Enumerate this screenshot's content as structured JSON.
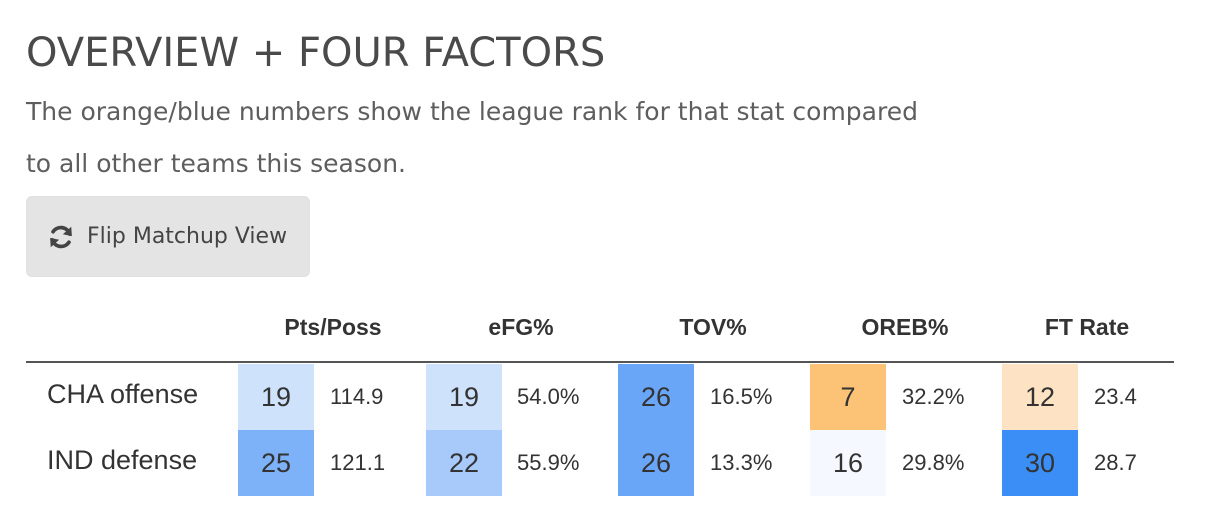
{
  "title": "OVERVIEW + FOUR FACTORS",
  "subtitle": "The orange/blue numbers show the league rank for that stat compared to all other teams this season.",
  "button": {
    "label": "Flip Matchup View",
    "icon": "refresh-icon"
  },
  "columns": [
    "Pts/Poss",
    "eFG%",
    "TOV%",
    "OREB%",
    "FT Rate"
  ],
  "rows": [
    {
      "label": "CHA offense",
      "cells": [
        {
          "rank": "19",
          "value": "114.9",
          "color": "#cfe2fb"
        },
        {
          "rank": "19",
          "value": "54.0%",
          "color": "#cfe2fb"
        },
        {
          "rank": "26",
          "value": "16.5%",
          "color": "#6aa6f7"
        },
        {
          "rank": "7",
          "value": "32.2%",
          "color": "#fcc276"
        },
        {
          "rank": "12",
          "value": "23.4",
          "color": "#fde3c3"
        }
      ]
    },
    {
      "label": "IND defense",
      "cells": [
        {
          "rank": "25",
          "value": "121.1",
          "color": "#7db1f8"
        },
        {
          "rank": "22",
          "value": "55.9%",
          "color": "#a8cafa"
        },
        {
          "rank": "26",
          "value": "13.3%",
          "color": "#6aa6f7"
        },
        {
          "rank": "16",
          "value": "29.8%",
          "color": "#f5f8fe"
        },
        {
          "rank": "30",
          "value": "28.7",
          "color": "#3a8ef6"
        }
      ]
    }
  ]
}
